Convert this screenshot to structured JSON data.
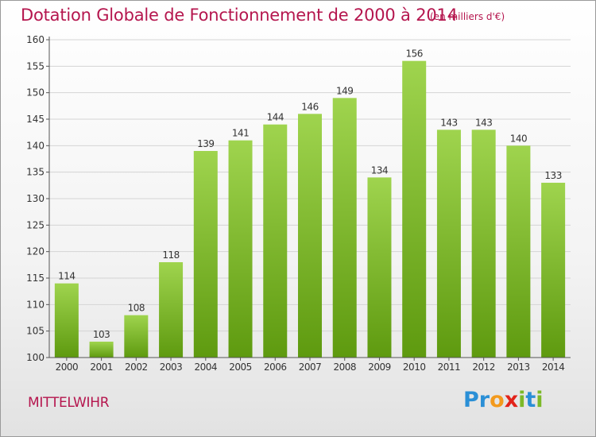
{
  "title": "Dotation Globale de Fonctionnement de 2000 à 2014",
  "subtitle": "(en milliers d'€)",
  "commune": "MITTELWIHR",
  "logo": {
    "letters": [
      "P",
      "r",
      "o",
      "x",
      "i",
      "t",
      "i"
    ],
    "colors": [
      "#2a8fd6",
      "#2a8fd6",
      "#f39a1d",
      "#e2231a",
      "#7cb928",
      "#2a8fd6",
      "#7cb928"
    ]
  },
  "colors": {
    "bar_top": "#9fd44e",
    "bar_bottom": "#5e9a0f",
    "axis": "#555555",
    "grid": "#d4d4d4",
    "text": "#333333"
  },
  "chart_data": {
    "type": "bar",
    "title": "Dotation Globale de Fonctionnement de 2000 à 2014",
    "subtitle": "(en milliers d'€)",
    "categories": [
      "2000",
      "2001",
      "2002",
      "2003",
      "2004",
      "2005",
      "2006",
      "2007",
      "2008",
      "2009",
      "2010",
      "2011",
      "2012",
      "2013",
      "2014"
    ],
    "values": [
      114,
      103,
      108,
      118,
      139,
      141,
      144,
      146,
      149,
      134,
      156,
      143,
      143,
      140,
      133
    ],
    "xlabel": "",
    "ylabel": "",
    "ylim": [
      100,
      160
    ],
    "yticks": [
      100,
      105,
      110,
      115,
      120,
      125,
      130,
      135,
      140,
      145,
      150,
      155,
      160
    ],
    "grid": true,
    "data_labels": true
  }
}
